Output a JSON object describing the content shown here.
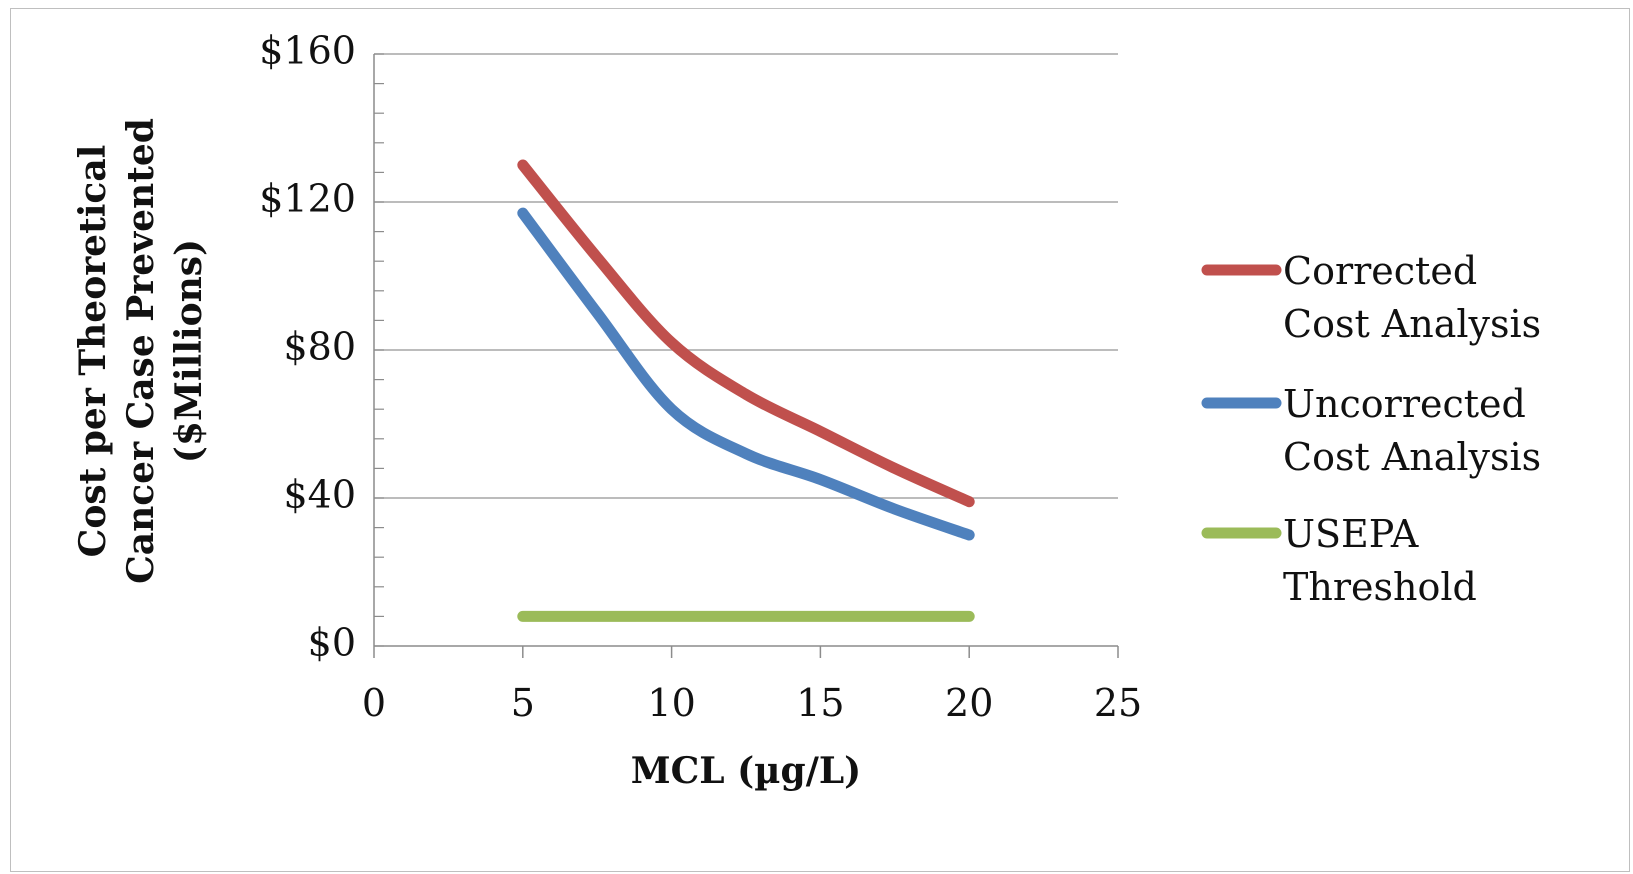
{
  "chart_data": {
    "type": "line",
    "title": "",
    "xlabel": "MCL (µg/L)",
    "ylabel_lines": [
      "Cost per Theoretical",
      "Cancer Case Prevented",
      "($Millions)"
    ],
    "xlim": [
      0,
      25
    ],
    "ylim": [
      0,
      160
    ],
    "x_ticks": [
      0,
      5,
      10,
      15,
      20,
      25
    ],
    "y_ticks": [
      0,
      40,
      80,
      120,
      160
    ],
    "y_tick_labels": [
      "$0",
      "$40",
      "$80",
      "$120",
      "$160"
    ],
    "grid": "horizontal-major",
    "legend_position": "right",
    "series": [
      {
        "name": "Corrected Cost Analysis",
        "legend_lines": [
          "Corrected",
          "Cost Analysis"
        ],
        "color": "#c0504d",
        "x": [
          5,
          7.5,
          10,
          12.5,
          15,
          17.5,
          20
        ],
        "values": [
          130,
          105,
          82,
          68,
          58,
          48,
          39
        ]
      },
      {
        "name": "Uncorrected Cost Analysis",
        "legend_lines": [
          "Uncorrected",
          "Cost Analysis"
        ],
        "color": "#4f81bd",
        "x": [
          5,
          7.5,
          10,
          12.5,
          15,
          17.5,
          20
        ],
        "values": [
          117,
          90,
          64,
          52,
          45,
          37,
          30
        ]
      },
      {
        "name": "USEPA Threshold",
        "legend_lines": [
          "USEPA",
          "Threshold"
        ],
        "color": "#9bbb59",
        "x": [
          5,
          20
        ],
        "values": [
          8,
          8
        ]
      }
    ]
  }
}
